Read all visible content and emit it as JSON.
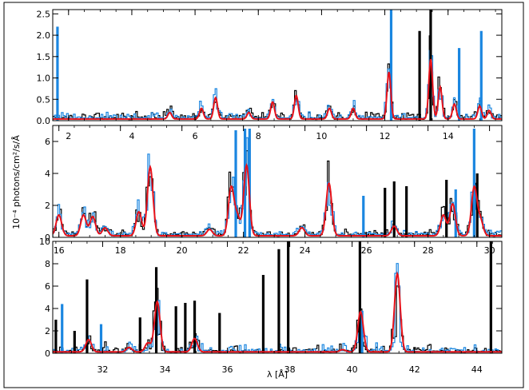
{
  "figure": {
    "ylabel": "10⁻⁴ photons/cm²/s/Å",
    "xlabel": "λ [Å]"
  },
  "colors": {
    "data_black": "#000000",
    "data_blue": "#1a86e0",
    "model_red": "#e8121a",
    "frame": "#000000"
  },
  "chart_data": [
    {
      "type": "line",
      "panel": "top",
      "xlim": [
        1.5,
        15.7
      ],
      "ylim": [
        0,
        2.6
      ],
      "x_ticks": [
        2,
        4,
        6,
        8,
        10,
        12,
        14
      ],
      "y_ticks": [
        "0.0",
        "0.5",
        "1.0",
        "1.5",
        "2.0",
        "2.5"
      ],
      "lines_model": [
        {
          "x": 5.2,
          "a": 0.15
        },
        {
          "x": 6.2,
          "a": 0.25
        },
        {
          "x": 6.65,
          "a": 0.5
        },
        {
          "x": 7.7,
          "a": 0.15
        },
        {
          "x": 8.45,
          "a": 0.4
        },
        {
          "x": 9.2,
          "a": 0.55
        },
        {
          "x": 10.25,
          "a": 0.25
        },
        {
          "x": 11.0,
          "a": 0.25
        },
        {
          "x": 12.13,
          "a": 1.1
        },
        {
          "x": 13.45,
          "a": 1.4
        },
        {
          "x": 13.75,
          "a": 0.75
        },
        {
          "x": 14.2,
          "a": 0.35
        },
        {
          "x": 15.0,
          "a": 0.3
        },
        {
          "x": 15.3,
          "a": 0.2
        }
      ],
      "model_base": 0.04,
      "spikes": [
        {
          "x": 1.65,
          "y": 2.2,
          "c": "blue"
        },
        {
          "x": 12.2,
          "y": 2.6,
          "c": "blue"
        },
        {
          "x": 13.45,
          "y": 2.62,
          "c": "black"
        },
        {
          "x": 13.1,
          "y": 2.1,
          "c": "black"
        },
        {
          "x": 15.05,
          "y": 2.1,
          "c": "blue"
        },
        {
          "x": 14.35,
          "y": 1.7,
          "c": "blue"
        }
      ]
    },
    {
      "type": "line",
      "panel": "middle",
      "xlim": [
        15.8,
        30.4
      ],
      "ylim": [
        0,
        7
      ],
      "x_ticks": [
        16,
        18,
        20,
        22,
        24,
        26,
        28,
        30
      ],
      "y_ticks": [
        "0",
        "2",
        "4",
        "6"
      ],
      "lines_model": [
        {
          "x": 16.0,
          "a": 1.3
        },
        {
          "x": 16.8,
          "a": 1.3
        },
        {
          "x": 17.1,
          "a": 1.2
        },
        {
          "x": 17.5,
          "a": 0.5
        },
        {
          "x": 18.6,
          "a": 1.5
        },
        {
          "x": 18.97,
          "a": 4.3
        },
        {
          "x": 20.9,
          "a": 0.4
        },
        {
          "x": 21.6,
          "a": 3.0
        },
        {
          "x": 21.8,
          "a": 1.2
        },
        {
          "x": 22.1,
          "a": 4.4
        },
        {
          "x": 23.9,
          "a": 0.5
        },
        {
          "x": 24.78,
          "a": 3.3
        },
        {
          "x": 26.9,
          "a": 0.6
        },
        {
          "x": 28.5,
          "a": 1.3
        },
        {
          "x": 28.8,
          "a": 2.0
        },
        {
          "x": 29.5,
          "a": 3.0
        },
        {
          "x": 29.7,
          "a": 1.0
        }
      ],
      "model_base": 0.1,
      "spikes": [
        {
          "x": 21.75,
          "y": 6.7,
          "c": "blue"
        },
        {
          "x": 22.05,
          "y": 6.8,
          "c": "blue"
        },
        {
          "x": 22.2,
          "y": 6.8,
          "c": "blue"
        },
        {
          "x": 29.5,
          "y": 6.8,
          "c": "blue"
        },
        {
          "x": 29.6,
          "y": 4.0,
          "c": "black"
        },
        {
          "x": 26.6,
          "y": 3.1,
          "c": "black"
        },
        {
          "x": 26.9,
          "y": 3.5,
          "c": "black"
        },
        {
          "x": 27.3,
          "y": 3.2,
          "c": "black"
        },
        {
          "x": 28.6,
          "y": 3.6,
          "c": "black"
        },
        {
          "x": 28.9,
          "y": 3.0,
          "c": "blue"
        },
        {
          "x": 25.9,
          "y": 2.6,
          "c": "blue"
        }
      ]
    },
    {
      "type": "line",
      "panel": "bottom",
      "xlim": [
        30.4,
        44.8
      ],
      "ylim": [
        0,
        10
      ],
      "x_ticks": [
        32,
        34,
        36,
        38,
        40,
        42,
        44
      ],
      "y_ticks": [
        "0",
        "2",
        "4",
        "6",
        "8",
        "10"
      ],
      "lines_model": [
        {
          "x": 31.55,
          "a": 1.1
        },
        {
          "x": 33.45,
          "a": 0.8
        },
        {
          "x": 33.75,
          "a": 4.5
        },
        {
          "x": 34.95,
          "a": 1.2
        },
        {
          "x": 32.85,
          "a": 0.4
        },
        {
          "x": 40.27,
          "a": 3.6
        },
        {
          "x": 41.45,
          "a": 7.0
        },
        {
          "x": 39.7,
          "a": 0.2
        }
      ],
      "model_base": 0.12,
      "spikes": [
        {
          "x": 30.5,
          "y": 3.0,
          "c": "black"
        },
        {
          "x": 31.5,
          "y": 6.6,
          "c": "black"
        },
        {
          "x": 31.1,
          "y": 2.0,
          "c": "black"
        },
        {
          "x": 33.2,
          "y": 3.2,
          "c": "black"
        },
        {
          "x": 33.72,
          "y": 7.7,
          "c": "black"
        },
        {
          "x": 34.35,
          "y": 4.2,
          "c": "black"
        },
        {
          "x": 34.65,
          "y": 4.5,
          "c": "black"
        },
        {
          "x": 34.95,
          "y": 4.7,
          "c": "black"
        },
        {
          "x": 35.75,
          "y": 3.6,
          "c": "black"
        },
        {
          "x": 37.15,
          "y": 7.0,
          "c": "black"
        },
        {
          "x": 37.65,
          "y": 9.3,
          "c": "black"
        },
        {
          "x": 37.95,
          "y": 10.0,
          "c": "black"
        },
        {
          "x": 40.25,
          "y": 10.0,
          "c": "black"
        },
        {
          "x": 40.32,
          "y": 3.8,
          "c": "blue"
        },
        {
          "x": 44.45,
          "y": 10.0,
          "c": "black"
        },
        {
          "x": 30.7,
          "y": 4.4,
          "c": "blue"
        },
        {
          "x": 31.95,
          "y": 2.6,
          "c": "blue"
        }
      ]
    }
  ]
}
